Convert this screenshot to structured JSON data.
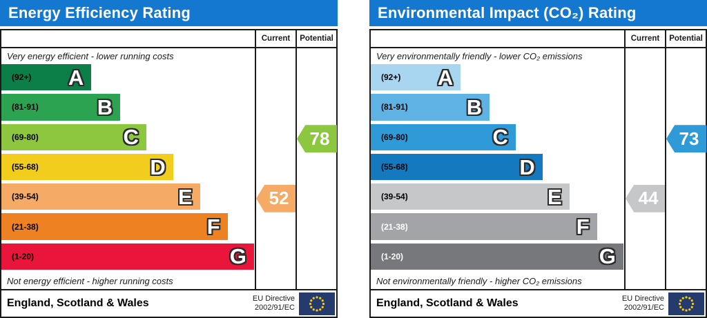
{
  "colors": {
    "header_blue": "#1478d1",
    "border": "#1a1a1a",
    "eu_flag_navy": "#253a6d",
    "eu_star_yellow": "#ffcc00"
  },
  "panels": [
    {
      "title": "Energy Efficiency Rating",
      "columns": {
        "current": "Current",
        "potential": "Potential"
      },
      "top_caption": "Very energy efficient - lower running costs",
      "bottom_caption": "Not energy efficient - higher running costs",
      "bands": [
        {
          "letter": "A",
          "range": "(92+)",
          "color": "#0b7f47",
          "width_pct": 35.5,
          "range_color": "#000000"
        },
        {
          "letter": "B",
          "range": "(81-91)",
          "color": "#2ca351",
          "width_pct": 46.9,
          "range_color": "#000000"
        },
        {
          "letter": "C",
          "range": "(69-80)",
          "color": "#8dc63f",
          "width_pct": 57.2,
          "range_color": "#000000"
        },
        {
          "letter": "D",
          "range": "(55-68)",
          "color": "#f2cd1e",
          "width_pct": 67.8,
          "range_color": "#000000"
        },
        {
          "letter": "E",
          "range": "(39-54)",
          "color": "#f5ab66",
          "width_pct": 78.4,
          "range_color": "#000000"
        },
        {
          "letter": "F",
          "range": "(21-38)",
          "color": "#ee8122",
          "width_pct": 89.3,
          "range_color": "#000000"
        },
        {
          "letter": "G",
          "range": "(1-20)",
          "color": "#e9153b",
          "width_pct": 99.7,
          "range_color": "#000000"
        }
      ],
      "current": {
        "value": "52",
        "band": "E",
        "band_index": 4,
        "color": "#f5ab66"
      },
      "potential": {
        "value": "78",
        "band": "C",
        "band_index": 2,
        "color": "#8dc63f"
      },
      "footer": {
        "region": "England, Scotland & Wales",
        "directive_line1": "EU Directive",
        "directive_line2": "2002/91/EC"
      }
    },
    {
      "title": "Environmental Impact (CO₂) Rating",
      "columns": {
        "current": "Current",
        "potential": "Potential"
      },
      "top_caption": "Very environmentally friendly - lower CO₂ emissions",
      "bottom_caption": "Not environmentally friendly - higher CO₂ emissions",
      "bands": [
        {
          "letter": "A",
          "range": "(92+)",
          "color": "#a8d6f0",
          "width_pct": 35.5,
          "range_color": "#000000"
        },
        {
          "letter": "B",
          "range": "(81-91)",
          "color": "#5fb3e4",
          "width_pct": 46.9,
          "range_color": "#000000"
        },
        {
          "letter": "C",
          "range": "(69-80)",
          "color": "#2f9ad8",
          "width_pct": 57.2,
          "range_color": "#000000"
        },
        {
          "letter": "D",
          "range": "(55-68)",
          "color": "#1579c0",
          "width_pct": 67.8,
          "range_color": "#000000"
        },
        {
          "letter": "E",
          "range": "(39-54)",
          "color": "#c6c7c9",
          "width_pct": 78.4,
          "range_color": "#000000"
        },
        {
          "letter": "F",
          "range": "(21-38)",
          "color": "#a2a4a7",
          "width_pct": 89.3,
          "range_color": "#ffffff"
        },
        {
          "letter": "G",
          "range": "(1-20)",
          "color": "#77787b",
          "width_pct": 99.7,
          "range_color": "#ffffff"
        }
      ],
      "current": {
        "value": "44",
        "band": "E",
        "band_index": 4,
        "color": "#c6c7c9"
      },
      "potential": {
        "value": "73",
        "band": "C",
        "band_index": 2,
        "color": "#2f9ad8"
      },
      "footer": {
        "region": "England, Scotland & Wales",
        "directive_line1": "EU Directive",
        "directive_line2": "2002/91/EC"
      }
    }
  ],
  "chart_data": [
    {
      "type": "bar",
      "title": "Energy Efficiency Rating",
      "categories": [
        "A (92+)",
        "B (81-91)",
        "C (69-80)",
        "D (55-68)",
        "E (39-54)",
        "F (21-38)",
        "G (1-20)"
      ],
      "bar_length_pct": [
        35.5,
        46.9,
        57.2,
        67.8,
        78.4,
        89.3,
        99.7
      ],
      "current": 52,
      "current_band": "E",
      "potential": 78,
      "potential_band": "C",
      "top_label": "Very energy efficient - lower running costs",
      "bottom_label": "Not energy efficient - higher running costs",
      "region": "England, Scotland & Wales",
      "directive": "EU Directive 2002/91/EC"
    },
    {
      "type": "bar",
      "title": "Environmental Impact (CO₂) Rating",
      "categories": [
        "A (92+)",
        "B (81-91)",
        "C (69-80)",
        "D (55-68)",
        "E (39-54)",
        "F (21-38)",
        "G (1-20)"
      ],
      "bar_length_pct": [
        35.5,
        46.9,
        57.2,
        67.8,
        78.4,
        89.3,
        99.7
      ],
      "current": 44,
      "current_band": "E",
      "potential": 73,
      "potential_band": "C",
      "top_label": "Very environmentally friendly - lower CO₂ emissions",
      "bottom_label": "Not environmentally friendly - higher CO₂ emissions",
      "region": "England, Scotland & Wales",
      "directive": "EU Directive 2002/91/EC"
    }
  ]
}
